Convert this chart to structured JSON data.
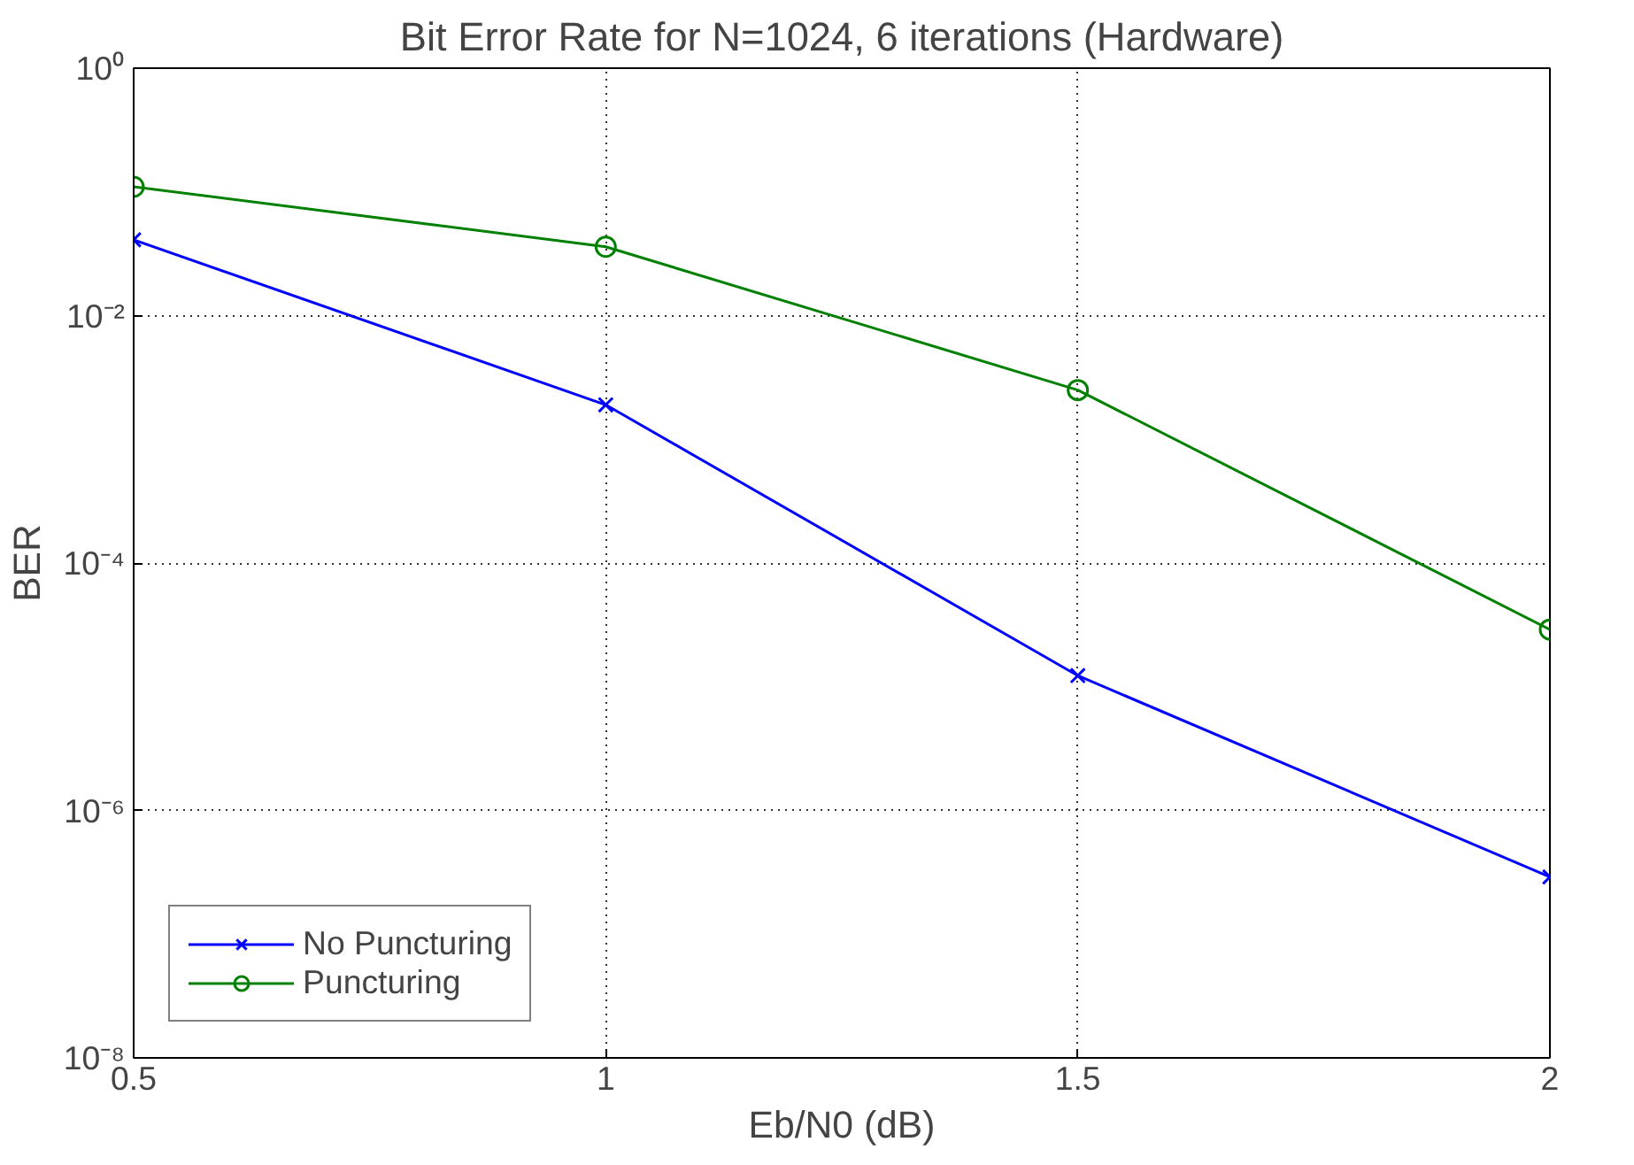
{
  "chart_data": {
    "type": "line",
    "title": "Bit Error Rate for N=1024, 6 iterations (Hardware)",
    "xlabel": "Eb/N0 (dB)",
    "ylabel": "BER",
    "x": [
      0.5,
      1,
      1.5,
      2
    ],
    "series": [
      {
        "name": "No Puncturing",
        "color": "#0000ff",
        "marker": "cross",
        "values": [
          0.041,
          0.0019,
          1.23e-05,
          2.9e-07
        ]
      },
      {
        "name": "Puncturing",
        "color": "#008000",
        "marker": "circle",
        "values": [
          0.11,
          0.036,
          0.0025,
          2.9e-05
        ]
      }
    ],
    "log": "y",
    "xlim": [
      0.5,
      2
    ],
    "ylim": [
      1e-08,
      1
    ],
    "xticks": [
      0.5,
      1,
      1.5,
      2
    ],
    "yticks": [
      {
        "value": 1e-08,
        "label": "10⁻⁸"
      },
      {
        "value": 1e-06,
        "label": "10⁻⁶"
      },
      {
        "value": 0.0001,
        "label": "10⁻⁴"
      },
      {
        "value": 0.01,
        "label": "10⁻²"
      },
      {
        "value": 1,
        "label": "10⁰"
      }
    ],
    "grid": true,
    "legend": "bottom left",
    "line_style": "solid"
  }
}
